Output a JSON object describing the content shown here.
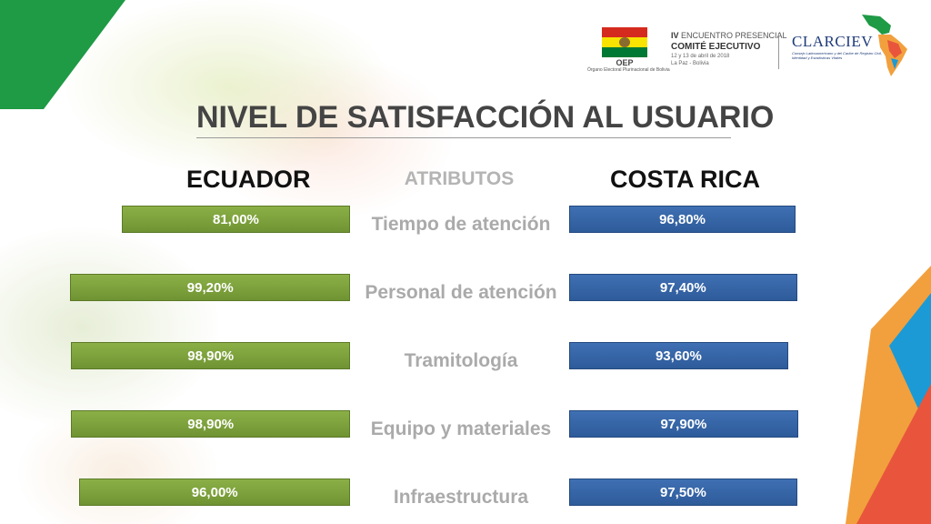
{
  "header": {
    "oep_name": "OEP",
    "oep_subtitle": "Órgano Electoral Plurinacional de Bolivia",
    "event_line1_prefix": "IV",
    "event_line1_rest": " ENCUENTRO PRESENCIAL",
    "event_line2": "COMITÉ EJECUTIVO",
    "event_line3": "12 y 13 de abril de 2018",
    "event_line4": "La Paz - Bolivia",
    "clarciev_name": "CLARCIEV",
    "clarciev_subtitle": "Consejo Latinoamericano y del Caribe de Registro Civil, Identidad y Estadísticas Vitales"
  },
  "colors": {
    "green_corner": "#1f9a45",
    "ecuador_bar": "#7ba33c",
    "costa_rica_bar": "#2f5d9e",
    "orange": "#f2a03d",
    "blue": "#1b9ad6",
    "red": "#e8553c"
  },
  "chart_data": {
    "type": "bar",
    "title": "NIVEL DE SATISFACCIÓN AL USUARIO",
    "attributes_label": "ATRIBUTOS",
    "categories": [
      "Tiempo de atención",
      "Personal de atención",
      "Tramitología",
      "Equipo y materiales",
      "Infraestructura"
    ],
    "series": [
      {
        "name": "ECUADOR",
        "values": [
          81.0,
          99.2,
          98.9,
          98.9,
          96.0
        ],
        "labels": [
          "81,00%",
          "99,20%",
          "98,90%",
          "98,90%",
          "96,00%"
        ]
      },
      {
        "name": "COSTA RICA",
        "values": [
          96.8,
          97.4,
          93.6,
          97.9,
          97.5
        ],
        "labels": [
          "96,80%",
          "97,40%",
          "93,60%",
          "97,90%",
          "97,50%"
        ]
      }
    ],
    "ylim": [
      0,
      100
    ]
  }
}
